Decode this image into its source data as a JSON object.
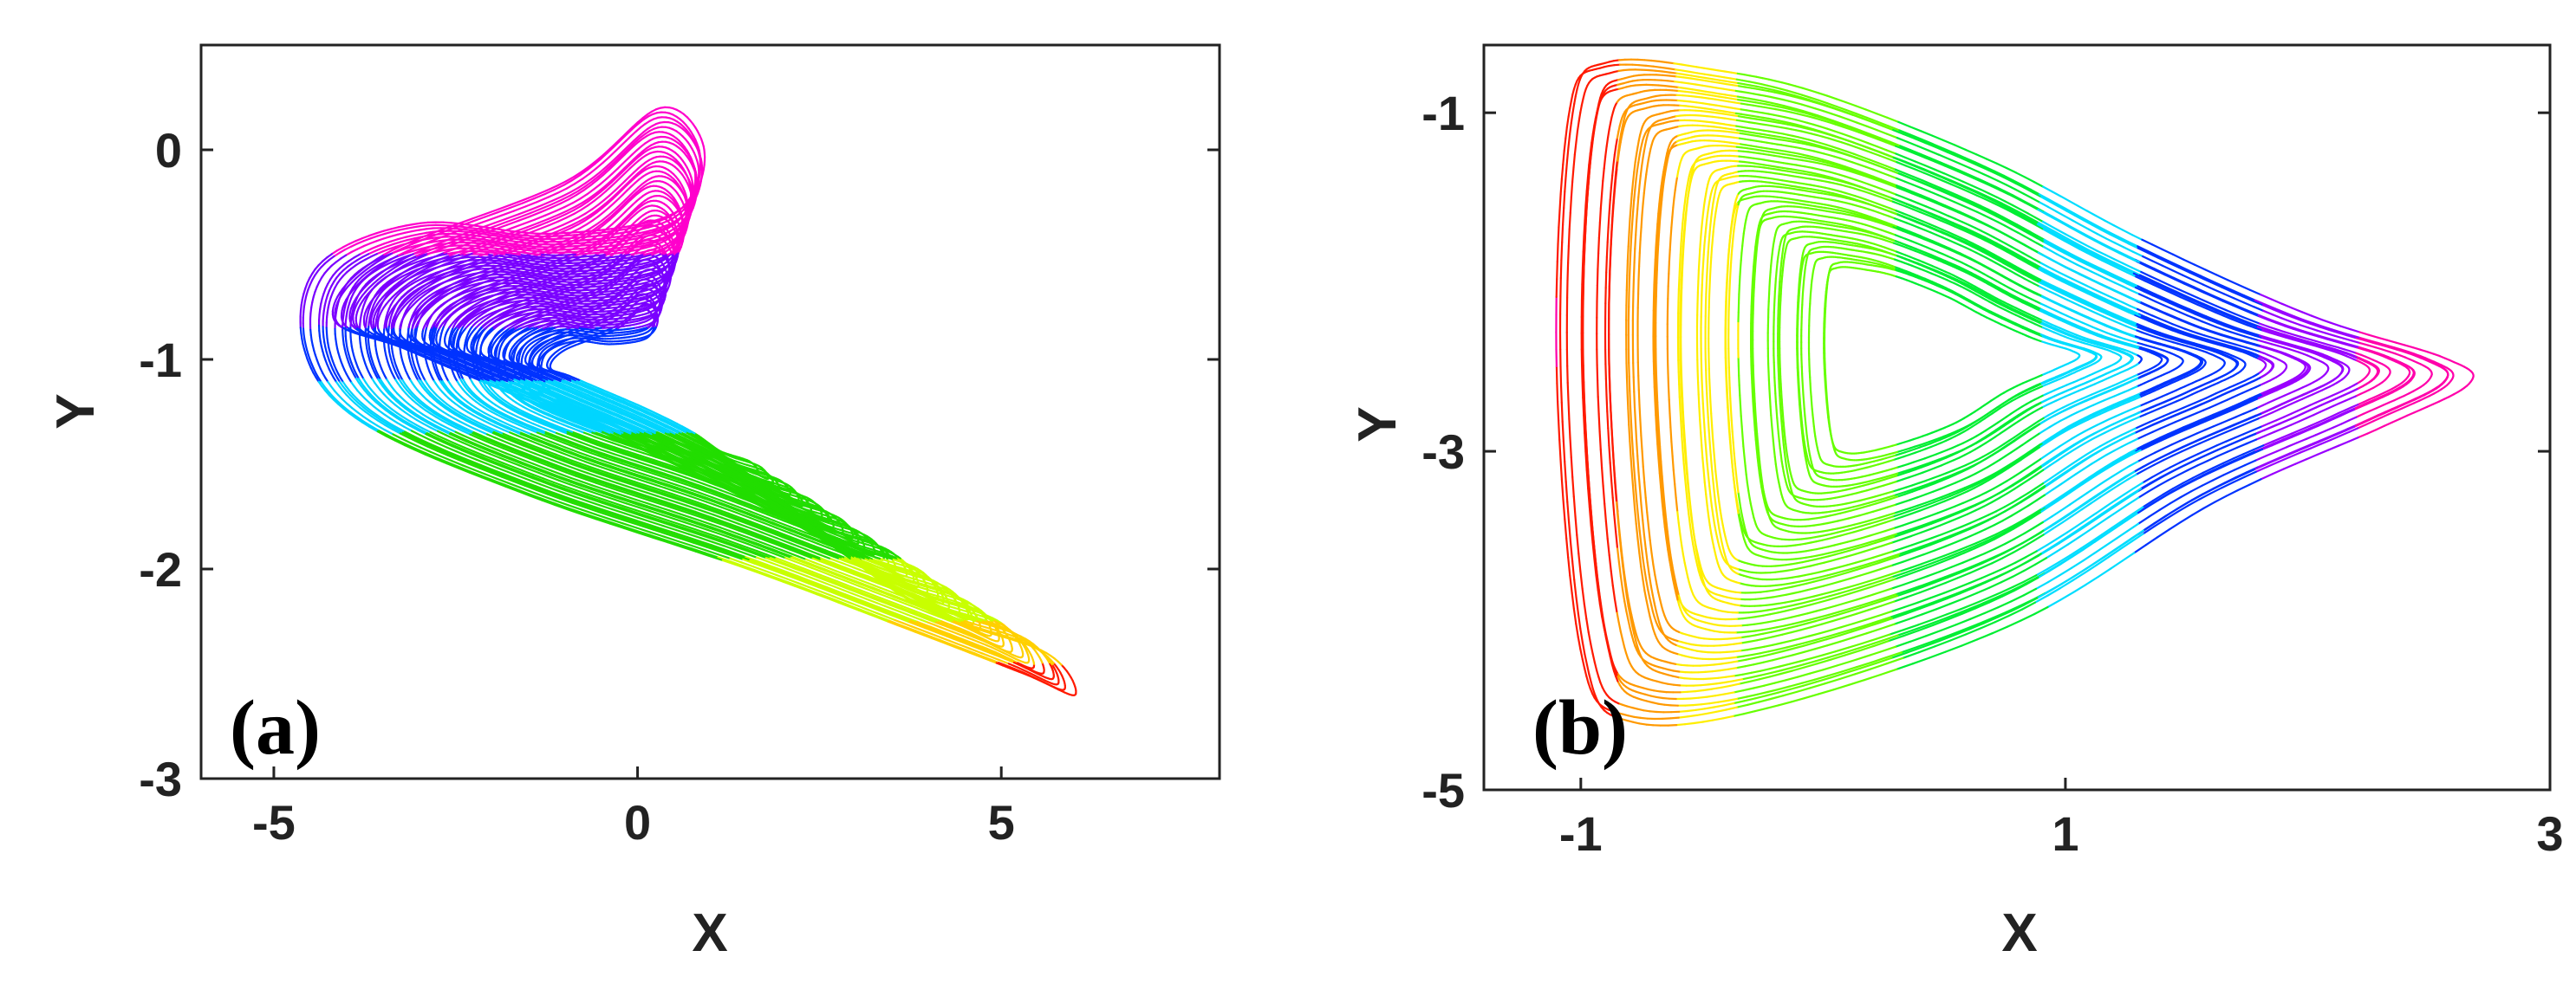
{
  "chart_data": [
    {
      "type": "scatter",
      "panel_label": "(a)",
      "xlabel": "X",
      "ylabel": "Y",
      "xlim": [
        -6,
        8
      ],
      "ylim": [
        -3,
        0.5
      ],
      "xticks": [
        -5,
        0,
        5
      ],
      "xtick_labels": [
        "-5",
        "0",
        "5"
      ],
      "yticks": [
        -3,
        -2,
        -1,
        0
      ],
      "ytick_labels": [
        "-3",
        "-2",
        "-1",
        "0"
      ],
      "grid": false,
      "colormap": "hsv rainbow (color varies along trajectory)",
      "trajectory_outline": {
        "x": [
          0.3,
          0.9,
          0.5,
          -1.2,
          -3.0,
          -4.4,
          -4.6,
          -3.8,
          -1.5,
          1.5,
          3.8,
          5.3,
          6.0,
          5.6,
          4.0,
          2.5,
          0.5,
          -1.5,
          -3.2,
          -4.2,
          -3.5,
          -1.0,
          0.3
        ],
        "y": [
          0.2,
          0.0,
          -0.3,
          -0.4,
          -0.35,
          -0.55,
          -0.95,
          -1.3,
          -1.65,
          -2.0,
          -2.3,
          -2.5,
          -2.6,
          -2.4,
          -2.2,
          -1.85,
          -1.5,
          -1.2,
          -0.95,
          -0.8,
          -0.5,
          -0.15,
          0.2
        ]
      },
      "color_bands": [
        {
          "y_range": [
            0.25,
            -0.5
          ],
          "color": "#ff00cc"
        },
        {
          "y_range": [
            -0.5,
            -0.85
          ],
          "color": "#7a00ff"
        },
        {
          "y_range": [
            -0.85,
            -1.1
          ],
          "color": "#0033ff"
        },
        {
          "y_range": [
            -1.1,
            -1.35
          ],
          "color": "#00d5ff"
        },
        {
          "y_range": [
            -1.35,
            -1.95
          ],
          "color": "#22dd00"
        },
        {
          "y_range": [
            -1.95,
            -2.25
          ],
          "color": "#c8ff00"
        },
        {
          "y_range": [
            -2.25,
            -2.45
          ],
          "color": "#ffd000"
        },
        {
          "y_range": [
            -2.45,
            -2.7
          ],
          "color": "#ff1a00"
        }
      ]
    },
    {
      "type": "scatter",
      "panel_label": "(b)",
      "xlabel": "X",
      "ylabel": "Y",
      "xlim": [
        -1.4,
        3
      ],
      "ylim": [
        -5,
        -0.6
      ],
      "xticks": [
        -1,
        1,
        3
      ],
      "xtick_labels": [
        "-1",
        "1",
        "3"
      ],
      "yticks": [
        -5,
        -3,
        -1
      ],
      "ytick_labels": [
        "-5",
        "-3",
        "-1"
      ],
      "grid": false,
      "colormap": "hsv rainbow (color varies along x)",
      "trajectory_outline": {
        "x": [
          -1.05,
          -0.9,
          -0.45,
          0.0,
          0.7,
          1.3,
          2.0,
          2.55,
          2.65,
          2.3,
          1.6,
          0.8,
          -0.2,
          -0.8,
          -1.0,
          -1.1,
          -1.05
        ],
        "y": [
          -1.0,
          -0.7,
          -0.75,
          -0.9,
          -1.3,
          -1.75,
          -2.2,
          -2.45,
          -2.6,
          -2.85,
          -3.3,
          -4.0,
          -4.5,
          -4.6,
          -4.2,
          -2.5,
          -1.0
        ]
      },
      "color_bands": [
        {
          "x_range": [
            -1.1,
            -0.85
          ],
          "color": "#ff1a00"
        },
        {
          "x_range": [
            -0.85,
            -0.6
          ],
          "color": "#ff9900"
        },
        {
          "x_range": [
            -0.6,
            -0.35
          ],
          "color": "#ffee00"
        },
        {
          "x_range": [
            -0.35,
            0.3
          ],
          "color": "#66ff00"
        },
        {
          "x_range": [
            0.3,
            0.9
          ],
          "color": "#00ee33"
        },
        {
          "x_range": [
            0.9,
            1.3
          ],
          "color": "#00ddff"
        },
        {
          "x_range": [
            1.3,
            1.8
          ],
          "color": "#0033ff"
        },
        {
          "x_range": [
            1.8,
            2.2
          ],
          "color": "#9900ff"
        },
        {
          "x_range": [
            2.2,
            2.7
          ],
          "color": "#ff00aa"
        }
      ]
    }
  ]
}
